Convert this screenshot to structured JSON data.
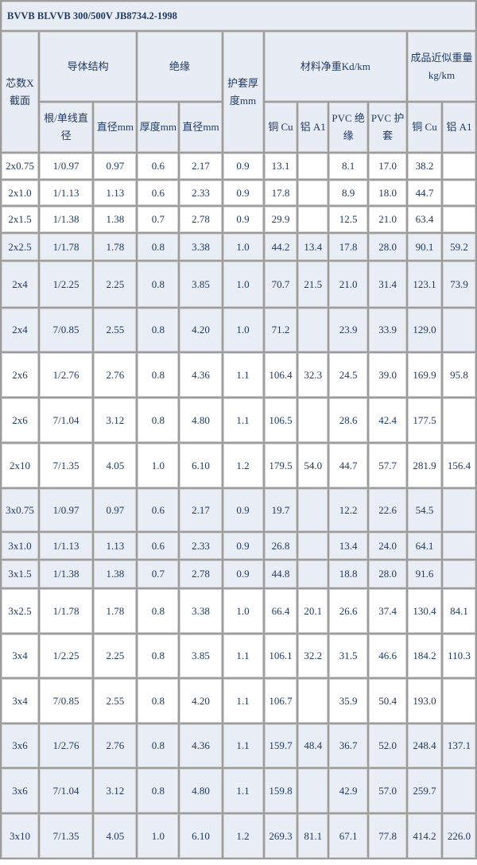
{
  "title": "BVVB BLVVB 300/500V JB8734.2-1998",
  "headers": {
    "cores": "芯数X截面",
    "conductor": "导体结构",
    "insulation": "绝缘",
    "sheath": "护套厚度mm",
    "material": "材料净重Kd/km",
    "weight": "成品近似重量kg/km",
    "strand": "根/单线直径",
    "cond_dia": "直径mm",
    "ins_thick": "厚度mm",
    "ins_dia": "直径mm",
    "cu": "铜 Cu",
    "al": "铝 A1",
    "pvc_ins": "PVC 绝缘",
    "pvc_sheath": "PVC 护套",
    "w_cu": "铜 Cu",
    "w_al": "铝 A1"
  },
  "colors": {
    "header_bg": "#e8ecf4",
    "shade_bg": "#e9edf5",
    "text": "#1f3a62",
    "grid": "#9c9c9c"
  },
  "rows": [
    [
      "2x0.75",
      "1/0.97",
      "0.97",
      "0.6",
      "2.17",
      "0.9",
      "13.1",
      "",
      "8.1",
      "17.0",
      "38.2",
      ""
    ],
    [
      "2x1.0",
      "1/1.13",
      "1.13",
      "0.6",
      "2.33",
      "0.9",
      "17.8",
      "",
      "8.9",
      "18.0",
      "44.7",
      ""
    ],
    [
      "2x1.5",
      "1/1.38",
      "1.38",
      "0.7",
      "2.78",
      "0.9",
      "29.9",
      "",
      "12.5",
      "21.0",
      "63.4",
      ""
    ],
    [
      "2x2.5",
      "1/1.78",
      "1.78",
      "0.8",
      "3.38",
      "1.0",
      "44.2",
      "13.4",
      "17.8",
      "28.0",
      "90.1",
      "59.2"
    ],
    [
      "2x4",
      "1/2.25",
      "2.25",
      "0.8",
      "3.85",
      "1.0",
      "70.7",
      "21.5",
      "21.0",
      "31.4",
      "123.1",
      "73.9"
    ],
    [
      "2x4",
      "7/0.85",
      "2.55",
      "0.8",
      "4.20",
      "1.0",
      "71.2",
      "",
      "23.9",
      "33.9",
      "129.0",
      ""
    ],
    [
      "2x6",
      "1/2.76",
      "2.76",
      "0.8",
      "4.36",
      "1.1",
      "106.4",
      "32.3",
      "24.5",
      "39.0",
      "169.9",
      "95.8"
    ],
    [
      "2x6",
      "7/1.04",
      "3.12",
      "0.8",
      "4.80",
      "1.1",
      "106.5",
      "",
      "28.6",
      "42.4",
      "177.5",
      ""
    ],
    [
      "2x10",
      "7/1.35",
      "4.05",
      "1.0",
      "6.10",
      "1.2",
      "179.5",
      "54.0",
      "44.7",
      "57.7",
      "281.9",
      "156.4"
    ],
    [
      "3x0.75",
      "1/0.97",
      "0.97",
      "0.6",
      "2.17",
      "0.9",
      "19.7",
      "",
      "12.2",
      "22.6",
      "54.5",
      ""
    ],
    [
      "3x1.0",
      "1/1.13",
      "1.13",
      "0.6",
      "2.33",
      "0.9",
      "26.8",
      "",
      "13.4",
      "24.0",
      "64.1",
      ""
    ],
    [
      "3x1.5",
      "1/1.38",
      "1.38",
      "0.7",
      "2.78",
      "0.9",
      "44.8",
      "",
      "18.8",
      "28.0",
      "91.6",
      ""
    ],
    [
      "3x2.5",
      "1/1.78",
      "1.78",
      "0.8",
      "3.38",
      "1.0",
      "66.4",
      "20.1",
      "26.6",
      "37.4",
      "130.4",
      "84.1"
    ],
    [
      "3x4",
      "1/2.25",
      "2.25",
      "0.8",
      "3.85",
      "1.1",
      "106.1",
      "32.2",
      "31.5",
      "46.6",
      "184.2",
      "110.3"
    ],
    [
      "3x4",
      "7/0.85",
      "2.55",
      "0.8",
      "4.20",
      "1.1",
      "106.7",
      "",
      "35.9",
      "50.4",
      "193.0",
      ""
    ],
    [
      "3x6",
      "1/2.76",
      "2.76",
      "0.8",
      "4.36",
      "1.1",
      "159.7",
      "48.4",
      "36.7",
      "52.0",
      "248.4",
      "137.1"
    ],
    [
      "3x6",
      "7/1.04",
      "3.12",
      "0.8",
      "4.80",
      "1.1",
      "159.8",
      "",
      "42.9",
      "57.0",
      "259.7",
      ""
    ],
    [
      "3x10",
      "7/1.35",
      "4.05",
      "1.0",
      "6.10",
      "1.2",
      "269.3",
      "81.1",
      "67.1",
      "77.8",
      "414.2",
      "226.0"
    ]
  ]
}
